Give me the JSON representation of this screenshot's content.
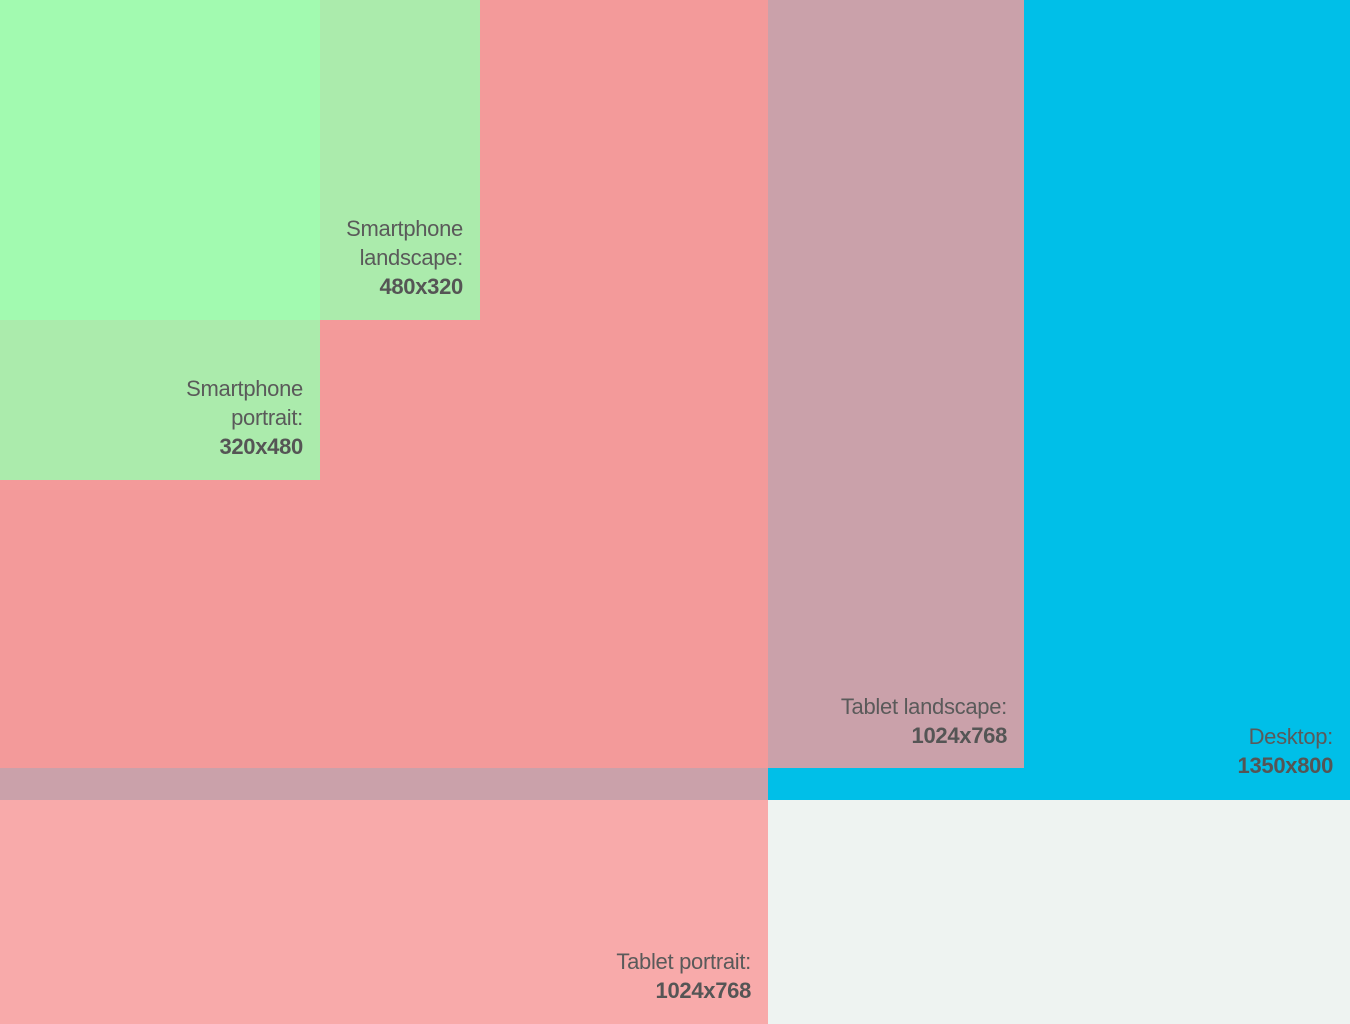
{
  "regions": {
    "desktop": {
      "name": "Desktop:",
      "size": "1350x800",
      "color": "#00bfe8"
    },
    "tablet_portrait": {
      "name": "Tablet portrait:",
      "size": "1024x768",
      "color": "#f8aaaa"
    },
    "tablet_landscape": {
      "name": "Tablet landscape:",
      "size": "1024x768",
      "color": "#caa1aa"
    },
    "tablet_overlap": {
      "color": "#f39a9a"
    },
    "tablet_desktop_overlap": {
      "color": "#caa1aa"
    },
    "smartphone_landscape": {
      "name_line1": "Smartphone",
      "name_line2": "landscape:",
      "size": "480x320",
      "color": "#abebac"
    },
    "smartphone_portrait": {
      "name_line1": "Smartphone",
      "name_line2": "portrait:",
      "size": "320x480",
      "color": "#abebac"
    },
    "smartphone_overlap": {
      "color": "#a2fab0"
    }
  },
  "background_color": "#eef3f1"
}
